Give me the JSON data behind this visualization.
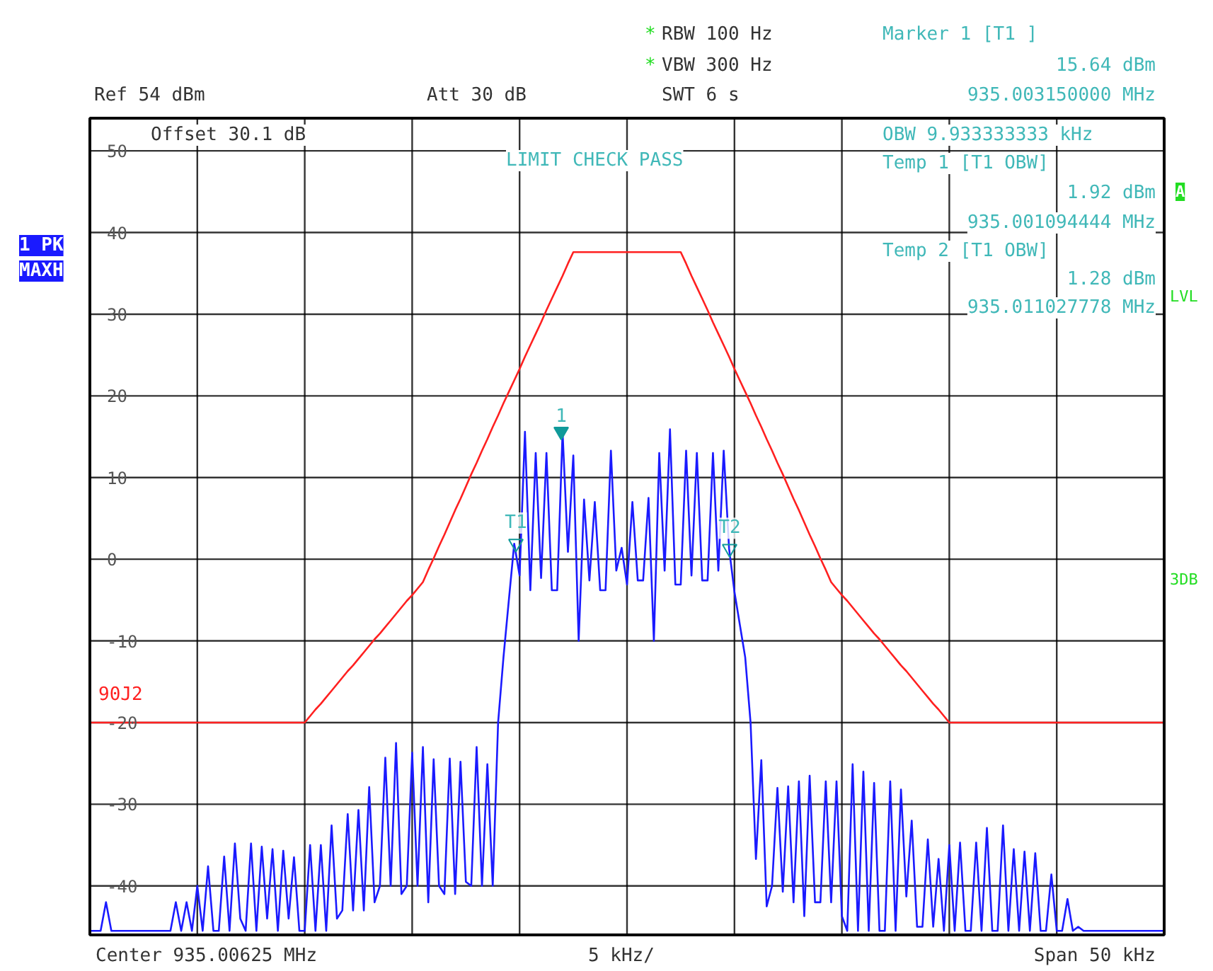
{
  "chart_data": {
    "type": "line",
    "ylim": [
      -46,
      54
    ],
    "categories": [
      null,
      null,
      null,
      null,
      null,
      null,
      null,
      null,
      null,
      null,
      null,
      null,
      null,
      null,
      null,
      null,
      null,
      null,
      null,
      null,
      null,
      null,
      null,
      null,
      null,
      null,
      null,
      null,
      null,
      null,
      null,
      null,
      null,
      null,
      null,
      null,
      null,
      null,
      null,
      null,
      null,
      null,
      null,
      null,
      null,
      null,
      null,
      null,
      null,
      null,
      null,
      null,
      null,
      null,
      null,
      null,
      null,
      null,
      null,
      null,
      null,
      null,
      null,
      null,
      null,
      null,
      null,
      null,
      null,
      null,
      null,
      null,
      null,
      null,
      null,
      null,
      null,
      null,
      null,
      null,
      null,
      null,
      null,
      null,
      null,
      null,
      null,
      null,
      null,
      null,
      null,
      null,
      null,
      null,
      null,
      null,
      null,
      null,
      null,
      null,
      null,
      null,
      null,
      null,
      null,
      null,
      null,
      null,
      null,
      null,
      null,
      null,
      null,
      null,
      null,
      null,
      null,
      null,
      null,
      null,
      null,
      null,
      null,
      null,
      null,
      null,
      null,
      null,
      null,
      null,
      null,
      null,
      null,
      null,
      null,
      null,
      null,
      null,
      null,
      null,
      null,
      null,
      null,
      null,
      null,
      null,
      null,
      null,
      null,
      null,
      null,
      null,
      null,
      null,
      null,
      null,
      null,
      null,
      null,
      null,
      null,
      null,
      null,
      null,
      null,
      null,
      null,
      null,
      null,
      null,
      null,
      null,
      null,
      null,
      null,
      null,
      null,
      null,
      null,
      null,
      null,
      null,
      null,
      null,
      null,
      null,
      null,
      null,
      null,
      null,
      null,
      null,
      null,
      null,
      null,
      null,
      null,
      null,
      null,
      null,
      null
    ],
    "yticks": [
      -40,
      -30,
      -20,
      -10,
      0,
      10,
      20,
      30,
      40,
      50
    ],
    "tick_labels": "y",
    "grid": true,
    "legend": false,
    "marker": "none",
    "line_style": "solid",
    "series": [
      {
        "color": "#1a1aff",
        "values": [
          -45.5,
          -45.5,
          -45.5,
          -42,
          -45.5,
          -45.5,
          -45.5,
          -45.5,
          -45.5,
          -45.5,
          -45.5,
          -45.5,
          -45.5,
          -45.5,
          -45.5,
          -45.5,
          -42,
          -45.5,
          -42,
          -45.5,
          -40,
          -45.5,
          -37.6,
          -45.5,
          -45.5,
          -36.4,
          -45.5,
          -34.8,
          -44,
          -45.5,
          -34.8,
          -45.5,
          -35.2,
          -44,
          -35.5,
          -45.5,
          -35.7,
          -44,
          -36.5,
          -45.5,
          -45.5,
          -35,
          -45.5,
          -35,
          -45.5,
          -32.6,
          -44,
          -43,
          -31.2,
          -43,
          -30.7,
          -43,
          -27.9,
          -42,
          -40,
          -24.3,
          -40,
          -22.5,
          -41,
          -40,
          -23.7,
          -40,
          -23,
          -42,
          -24.5,
          -40,
          -41,
          -24.4,
          -41,
          -24.8,
          -39.5,
          -40,
          -23,
          -40,
          -25.1,
          -40,
          -20,
          -12,
          -5,
          1.9,
          -2,
          15.6,
          -3.8,
          13,
          -2.3,
          13,
          -3.8,
          -3.8,
          15.6,
          0.9,
          12.7,
          -10,
          7.3,
          -2.6,
          7,
          -3.8,
          -3.8,
          13.3,
          -1.4,
          1.4,
          -3.1,
          7,
          -2.6,
          -2.6,
          7.5,
          -10,
          13,
          -1.4,
          15.9,
          -3.1,
          -3.1,
          13.3,
          -2,
          13,
          -2.6,
          -2.6,
          13,
          -1.4,
          13.3,
          1.3,
          -4,
          -8,
          -12,
          -20,
          -36.7,
          -24.6,
          -42.5,
          -40,
          -28,
          -40.7,
          -27.8,
          -42,
          -27.2,
          -43.7,
          -26.5,
          -42,
          -42,
          -27.2,
          -42,
          -27.2,
          -43.7,
          -45.5,
          -25.1,
          -45.5,
          -26,
          -45.5,
          -27.4,
          -45.5,
          -45.5,
          -27.2,
          -45.5,
          -28.2,
          -41.3,
          -32,
          -45,
          -45,
          -34.3,
          -45,
          -36.7,
          -45.5,
          -35,
          -45.5,
          -34.7,
          -45.5,
          -45.5,
          -34.7,
          -45.5,
          -32.9,
          -45.5,
          -45.5,
          -32.6,
          -45.5,
          -35.5,
          -45.5,
          -35.8,
          -45.5,
          -36,
          -45.5,
          -45.5,
          -38.6,
          -45.5,
          -45.5,
          -41.6,
          -45.5,
          -45,
          -45.5,
          -45.5,
          -45.5,
          -45.5,
          -45.5,
          -45.5,
          -45.5,
          -45.5,
          -45.5,
          -45.5,
          -45.5,
          -45.5,
          -45.5,
          -45.5,
          -45.5,
          -45.5
        ]
      },
      {
        "name": "90J2",
        "color": "#ff2020",
        "values": [
          -20,
          -20,
          -20,
          -20,
          -20,
          -20,
          -20,
          -20,
          -20,
          -20,
          -20,
          -20,
          -20,
          -20,
          -20,
          -20,
          -20,
          -20,
          -20,
          -20,
          -20,
          -20,
          -20,
          -20,
          -20,
          -20,
          -20,
          -20,
          -20,
          -20,
          -20,
          -20,
          -20,
          -20,
          -20,
          -20,
          -20,
          -20,
          -20,
          -20,
          -20,
          -19.2,
          -18.4,
          -17.7,
          -16.9,
          -16.1,
          -15.3,
          -14.5,
          -13.7,
          -13.0,
          -12.2,
          -11.4,
          -10.6,
          -9.8,
          -9.1,
          -8.3,
          -7.5,
          -6.7,
          -5.9,
          -5.1,
          -4.4,
          -3.6,
          -2.8,
          -1.3,
          0.1,
          1.6,
          3.0,
          4.5,
          6.0,
          7.4,
          8.9,
          10.4,
          11.8,
          13.3,
          14.7,
          16.2,
          17.6,
          19.1,
          20.5,
          21.9,
          23.3,
          24.8,
          26.2,
          27.6,
          29.0,
          30.5,
          31.9,
          33.3,
          34.7,
          36.2,
          37.6,
          37.6,
          37.6,
          37.6,
          37.6,
          37.6,
          37.6,
          37.6,
          37.6,
          37.6,
          37.6,
          37.6,
          37.6,
          37.6,
          37.6,
          37.6,
          37.6,
          37.6,
          37.6,
          37.6,
          37.6,
          36.2,
          34.7,
          33.3,
          31.9,
          30.5,
          29.0,
          27.6,
          26.2,
          24.8,
          23.3,
          21.9,
          20.5,
          19.1,
          17.6,
          16.2,
          14.7,
          13.3,
          11.8,
          10.4,
          8.9,
          7.4,
          6.0,
          4.5,
          3.0,
          1.6,
          0.1,
          -1.3,
          -2.8,
          -3.6,
          -4.4,
          -5.1,
          -5.9,
          -6.7,
          -7.5,
          -8.3,
          -9.1,
          -9.8,
          -10.6,
          -11.4,
          -12.2,
          -13.0,
          -13.7,
          -14.5,
          -15.3,
          -16.1,
          -16.9,
          -17.7,
          -18.4,
          -19.2,
          -20,
          -20,
          -20,
          -20,
          -20,
          -20,
          -20,
          -20,
          -20,
          -20,
          -20,
          -20,
          -20,
          -20,
          -20,
          -20,
          -20,
          -20,
          -20,
          -20,
          -20,
          -20,
          -20,
          -20,
          -20,
          -20,
          -20,
          -20,
          -20,
          -20,
          -20,
          -20,
          -20,
          -20,
          -20,
          -20,
          -20,
          -20,
          -20,
          -20,
          -20
        ]
      }
    ],
    "annotations": [
      "*",
      "RBW 100 Hz",
      "*",
      "VBW 300 Hz",
      "Marker 1 [T1 ]",
      "15.64 dBm",
      "935.003150000 MHz",
      "Ref 54 dBm",
      "Att 30 dB",
      "SWT 6 s",
      "Offset 30.1 dB",
      "LIMIT CHECK PASS",
      "OBW 9.933333333 kHz",
      "Temp 1 [T1 OBW]",
      "1.92 dBm",
      "935.001094444 MHz",
      "Temp 2 [T1 OBW]",
      "1.28 dBm",
      "935.011027778 MHz",
      "1 PK",
      "MAXH",
      "A",
      "LVL",
      "3DB",
      "Center 935.00625 MHz",
      "5 kHz/",
      "Span 50 kHz",
      {
        "text": "1",
        "y": 15.64
      },
      {
        "text": "T1",
        "y": 1.92
      },
      {
        "text": "T2",
        "y": 1.28
      }
    ]
  }
}
